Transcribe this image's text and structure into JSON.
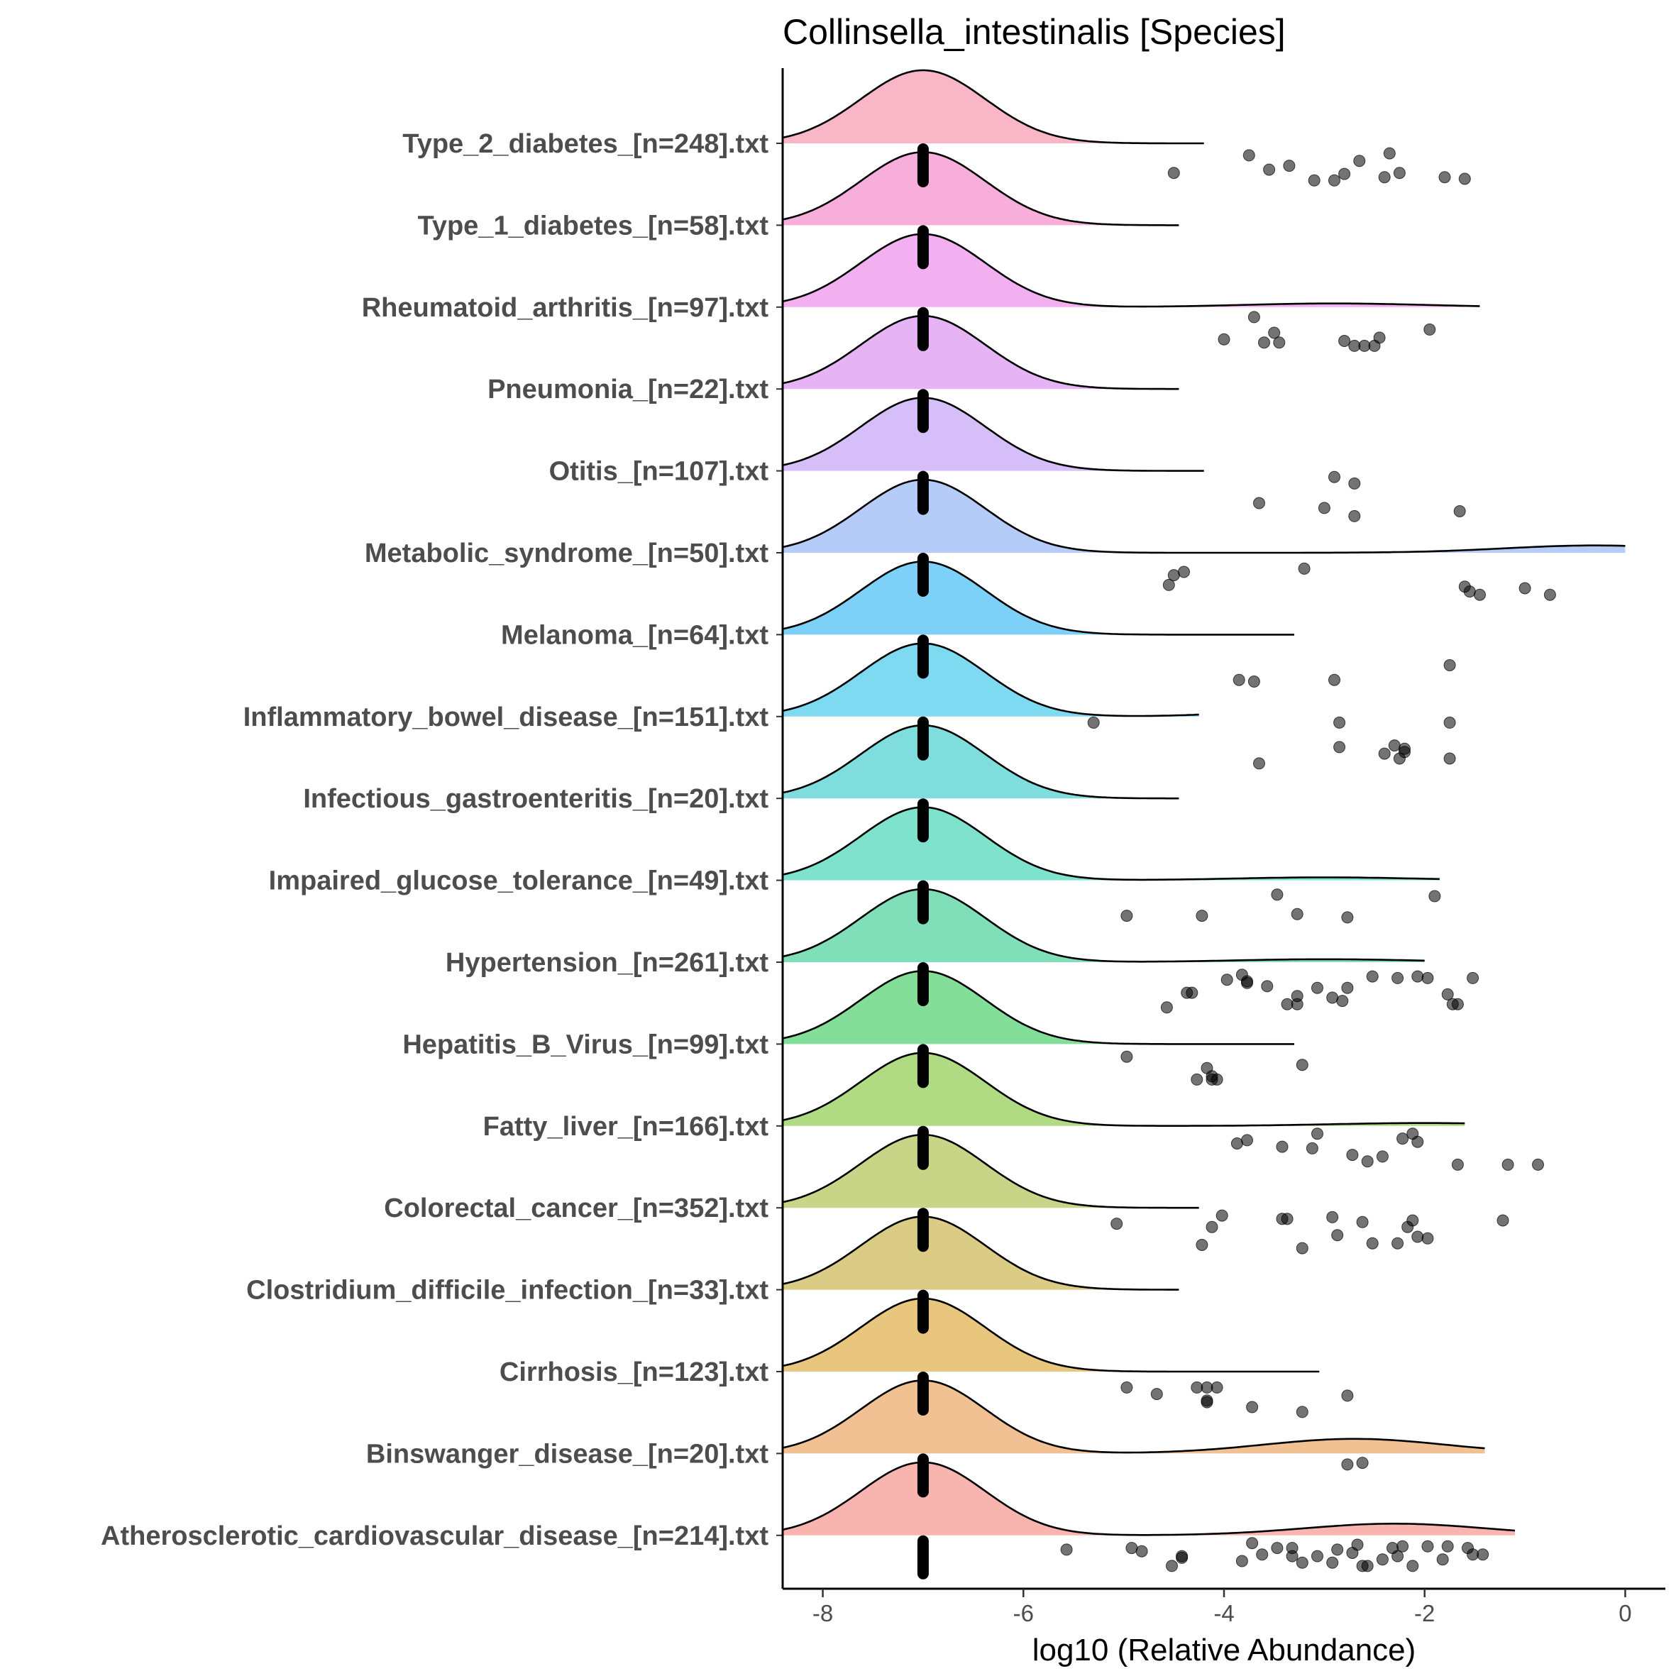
{
  "chart_data": {
    "type": "ridgeline",
    "title": "Collinsella_intestinalis [Species]",
    "xlabel": "log10 (Relative Abundance)",
    "ylabel": "",
    "xlim": [
      -8.4,
      0.4
    ],
    "xticks": [
      -8,
      -6,
      -4,
      -2,
      0
    ],
    "xtick_labels": [
      "-8",
      "-6",
      "-4",
      "-2",
      "0"
    ],
    "zero_value": -7,
    "categories": [
      {
        "label": "Type_2_diabetes_[n=248].txt",
        "color": "#F8B6C6",
        "max": -4.2,
        "tail": 0,
        "tail_center": 0,
        "points": [
          [
            -4.5,
            0.82
          ],
          [
            -3.75,
            0.28
          ],
          [
            -3.55,
            0.72
          ],
          [
            -3.35,
            0.6
          ],
          [
            -3.1,
            1.05
          ],
          [
            -2.9,
            1.05
          ],
          [
            -2.8,
            0.85
          ],
          [
            -2.65,
            0.45
          ],
          [
            -2.4,
            0.95
          ],
          [
            -2.35,
            0.22
          ],
          [
            -2.25,
            0.82
          ],
          [
            -1.8,
            0.95
          ],
          [
            -1.6,
            1.0
          ]
        ]
      },
      {
        "label": "Type_1_diabetes_[n=58].txt",
        "color": "#F7AEDB",
        "max": -4.45,
        "tail": 0,
        "tail_center": 0,
        "points": []
      },
      {
        "label": "Rheumatoid_arthritis_[n=97].txt",
        "color": "#F2B0F0",
        "max": -1.45,
        "tail": 0.05,
        "tail_center": -2.9,
        "points": [
          [
            -4.0,
            0.9
          ],
          [
            -3.7,
            0.22
          ],
          [
            -3.6,
            1.0
          ],
          [
            -3.5,
            0.7
          ],
          [
            -3.45,
            1.0
          ],
          [
            -2.8,
            0.95
          ],
          [
            -2.7,
            1.1
          ],
          [
            -2.6,
            1.1
          ],
          [
            -2.5,
            1.1
          ],
          [
            -2.45,
            0.85
          ],
          [
            -1.95,
            0.6
          ]
        ]
      },
      {
        "label": "Pneumonia_[n=22].txt",
        "color": "#E6B3F5",
        "max": -4.45,
        "tail": 0,
        "tail_center": 0,
        "points": []
      },
      {
        "label": "Otitis_[n=107].txt",
        "color": "#D6BEF8",
        "max": -4.2,
        "tail": 0,
        "tail_center": 0,
        "points": [
          [
            -3.65,
            0.9
          ],
          [
            -3.0,
            1.05
          ],
          [
            -2.9,
            0.1
          ],
          [
            -2.7,
            0.3
          ],
          [
            -2.7,
            1.3
          ],
          [
            -1.65,
            1.15
          ]
        ]
      },
      {
        "label": "Metabolic_syndrome_[n=50].txt",
        "color": "#B6CCF8",
        "max": 0,
        "tail": 0.1,
        "tail_center": -0.3,
        "points": [
          [
            -4.55,
            0.9
          ],
          [
            -4.5,
            0.6
          ],
          [
            -4.4,
            0.5
          ],
          [
            -3.2,
            0.4
          ],
          [
            -1.6,
            0.95
          ],
          [
            -1.55,
            1.1
          ],
          [
            -1.45,
            1.2
          ],
          [
            -1.0,
            1.0
          ],
          [
            -0.75,
            1.2
          ]
        ]
      },
      {
        "label": "Melanoma_[n=64].txt",
        "color": "#7DD1F8",
        "max": -3.3,
        "tail": 0,
        "tail_center": 0,
        "points": [
          [
            -3.85,
            1.3
          ],
          [
            -3.7,
            1.35
          ],
          [
            -2.9,
            1.3
          ],
          [
            -1.75,
            0.85
          ]
        ]
      },
      {
        "label": "Inflammatory_bowel_disease_[n=151].txt",
        "color": "#7DDAF0",
        "max": -4.25,
        "tail": 0.22,
        "tail_center": -2.4,
        "points": [
          [
            -5.3,
            0.1
          ],
          [
            -3.65,
            1.35
          ],
          [
            -2.85,
            0.1
          ],
          [
            -2.85,
            0.85
          ],
          [
            -2.4,
            1.05
          ],
          [
            -2.3,
            0.8
          ],
          [
            -2.25,
            1.2
          ],
          [
            -2.2,
            0.9
          ],
          [
            -2.2,
            1.0
          ],
          [
            -1.75,
            0.1
          ],
          [
            -1.75,
            1.2
          ]
        ]
      },
      {
        "label": "Infectious_gastroenteritis_[n=20].txt",
        "color": "#7FDEDD",
        "max": -4.45,
        "tail": 0,
        "tail_center": 0,
        "points": []
      },
      {
        "label": "Impaired_glucose_tolerance_[n=49].txt",
        "color": "#7EE2CC",
        "max": -1.85,
        "tail": 0.04,
        "tail_center": -3.0,
        "points": [
          [
            -4.97,
            1.0
          ],
          [
            -4.22,
            1.0
          ],
          [
            -3.47,
            0.35
          ],
          [
            -3.27,
            0.95
          ],
          [
            -2.77,
            1.05
          ],
          [
            -1.9,
            0.4
          ]
        ]
      },
      {
        "label": "Hypertension_[n=261].txt",
        "color": "#80DFB8",
        "max": -2.0,
        "tail": 0.04,
        "tail_center": -3.0,
        "points": [
          [
            -4.57,
            1.3
          ],
          [
            -4.37,
            0.85
          ],
          [
            -4.32,
            0.85
          ],
          [
            -3.97,
            0.45
          ],
          [
            -3.82,
            0.3
          ],
          [
            -3.77,
            0.55
          ],
          [
            -3.77,
            0.5
          ],
          [
            -3.57,
            0.65
          ],
          [
            -3.37,
            1.2
          ],
          [
            -3.27,
            1.2
          ],
          [
            -3.27,
            0.95
          ],
          [
            -3.07,
            0.7
          ],
          [
            -2.92,
            1.0
          ],
          [
            -2.82,
            1.1
          ],
          [
            -2.77,
            0.7
          ],
          [
            -2.52,
            0.35
          ],
          [
            -2.27,
            0.4
          ],
          [
            -2.07,
            0.35
          ],
          [
            -1.97,
            0.4
          ],
          [
            -1.77,
            0.9
          ],
          [
            -1.72,
            1.2
          ],
          [
            -1.67,
            1.2
          ],
          [
            -1.52,
            0.4
          ]
        ]
      },
      {
        "label": "Hepatitis_B_Virus_[n=99].txt",
        "color": "#83DE9A",
        "max": -3.3,
        "tail": 0,
        "tail_center": 0,
        "points": [
          [
            -4.97,
            0.3
          ],
          [
            -4.27,
            1.0
          ],
          [
            -4.17,
            0.65
          ],
          [
            -4.12,
            1.0
          ],
          [
            -4.12,
            0.9
          ],
          [
            -4.07,
            1.0
          ],
          [
            -3.22,
            0.55
          ]
        ]
      },
      {
        "label": "Fatty_liver_[n=166].txt",
        "color": "#B0DB83",
        "max": -1.6,
        "tail": 0.04,
        "tail_center": -2.0,
        "points": [
          [
            -3.87,
            0.45
          ],
          [
            -3.77,
            0.35
          ],
          [
            -3.42,
            0.55
          ],
          [
            -3.12,
            0.6
          ],
          [
            -3.07,
            0.15
          ],
          [
            -2.72,
            0.8
          ],
          [
            -2.57,
            1.0
          ],
          [
            -2.42,
            0.85
          ],
          [
            -2.22,
            0.3
          ],
          [
            -2.12,
            0.15
          ],
          [
            -2.07,
            0.4
          ],
          [
            -1.67,
            1.1
          ],
          [
            -1.17,
            1.1
          ],
          [
            -0.87,
            1.1
          ]
        ]
      },
      {
        "label": "Colorectal_cancer_[n=352].txt",
        "color": "#C8D587",
        "max": -4.25,
        "tail": 0,
        "tail_center": 0,
        "points": [
          [
            -5.07,
            0.4
          ],
          [
            -4.22,
            1.05
          ],
          [
            -4.12,
            0.5
          ],
          [
            -4.02,
            0.15
          ],
          [
            -3.42,
            0.25
          ],
          [
            -3.37,
            0.25
          ],
          [
            -3.22,
            1.15
          ],
          [
            -2.92,
            0.2
          ],
          [
            -2.87,
            0.75
          ],
          [
            -2.62,
            0.35
          ],
          [
            -2.52,
            1.0
          ],
          [
            -2.27,
            1.0
          ],
          [
            -2.17,
            0.5
          ],
          [
            -2.12,
            0.3
          ],
          [
            -2.07,
            0.8
          ],
          [
            -1.97,
            0.85
          ],
          [
            -1.22,
            0.3
          ]
        ]
      },
      {
        "label": "Clostridium_difficile_infection_[n=33].txt",
        "color": "#DACC84",
        "max": -4.45,
        "tail": 0,
        "tail_center": 0,
        "points": []
      },
      {
        "label": "Cirrhosis_[n=123].txt",
        "color": "#E9C67D",
        "max": -3.05,
        "tail": 0,
        "tail_center": 0,
        "points": [
          [
            -4.97,
            0.4
          ],
          [
            -4.67,
            0.6
          ],
          [
            -4.27,
            0.4
          ],
          [
            -4.17,
            0.85
          ],
          [
            -4.17,
            0.8
          ],
          [
            -4.17,
            0.4
          ],
          [
            -4.07,
            0.4
          ],
          [
            -3.72,
            1.0
          ],
          [
            -3.22,
            1.15
          ],
          [
            -2.77,
            0.65
          ]
        ]
      },
      {
        "label": "Binswanger_disease_[n=20].txt",
        "color": "#F2C193",
        "max": -1.4,
        "tail": 0.2,
        "tail_center": -2.7,
        "points": [
          [
            -2.77,
            0.25
          ],
          [
            -2.62,
            0.2
          ]
        ]
      },
      {
        "label": "Atherosclerotic_cardiovascular_disease_[n=214].txt",
        "color": "#F8B5AF",
        "max": -1.1,
        "tail": 0.16,
        "tail_center": -2.3,
        "points": [
          [
            -5.57,
            0.35
          ],
          [
            -4.92,
            0.3
          ],
          [
            -4.82,
            0.4
          ],
          [
            -4.52,
            0.85
          ],
          [
            -4.42,
            0.6
          ],
          [
            -4.42,
            0.55
          ],
          [
            -3.82,
            0.7
          ],
          [
            -3.72,
            0.15
          ],
          [
            -3.62,
            0.5
          ],
          [
            -3.47,
            0.3
          ],
          [
            -3.32,
            0.3
          ],
          [
            -3.32,
            0.55
          ],
          [
            -3.22,
            0.75
          ],
          [
            -3.07,
            0.55
          ],
          [
            -2.92,
            0.75
          ],
          [
            -2.87,
            0.35
          ],
          [
            -2.72,
            0.45
          ],
          [
            -2.67,
            0.2
          ],
          [
            -2.62,
            0.85
          ],
          [
            -2.57,
            0.85
          ],
          [
            -2.42,
            0.65
          ],
          [
            -2.32,
            0.3
          ],
          [
            -2.27,
            0.55
          ],
          [
            -2.22,
            0.25
          ],
          [
            -2.12,
            0.85
          ],
          [
            -1.97,
            0.25
          ],
          [
            -1.82,
            0.65
          ],
          [
            -1.77,
            0.25
          ],
          [
            -1.57,
            0.3
          ],
          [
            -1.52,
            0.5
          ],
          [
            -1.42,
            0.5
          ]
        ]
      }
    ]
  }
}
